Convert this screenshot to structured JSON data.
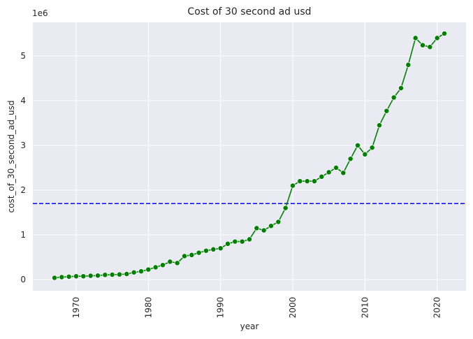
{
  "chart_data": {
    "type": "line",
    "title": "Cost of 30 second ad usd",
    "xlabel": "year",
    "ylabel": "cost_of_30_second_ad_usd",
    "y_offset_label": "1e6",
    "xlim": [
      1964,
      2024
    ],
    "ylim": [
      -0.25,
      5.75
    ],
    "y_unit_multiplier": 1000000,
    "x_ticks": [
      1970,
      1980,
      1990,
      2000,
      2010,
      2020
    ],
    "y_ticks": [
      0,
      1,
      2,
      3,
      4,
      5
    ],
    "grid": true,
    "background_color": "#eaeaf2",
    "line_color": "#008000",
    "reference_line": {
      "y": 1.7,
      "style": "dashed",
      "color": "#0000ff"
    },
    "x": [
      1967,
      1968,
      1969,
      1970,
      1971,
      1972,
      1973,
      1974,
      1975,
      1976,
      1977,
      1978,
      1979,
      1980,
      1981,
      1982,
      1983,
      1984,
      1985,
      1986,
      1987,
      1988,
      1989,
      1990,
      1991,
      1992,
      1993,
      1994,
      1995,
      1996,
      1997,
      1998,
      1999,
      2000,
      2001,
      2002,
      2003,
      2004,
      2005,
      2006,
      2007,
      2008,
      2009,
      2010,
      2011,
      2012,
      2013,
      2014,
      2015,
      2016,
      2017,
      2018,
      2019,
      2020,
      2021
    ],
    "y": [
      0.04,
      0.055,
      0.065,
      0.075,
      0.075,
      0.085,
      0.09,
      0.105,
      0.11,
      0.115,
      0.125,
      0.16,
      0.185,
      0.225,
      0.275,
      0.325,
      0.4,
      0.37,
      0.525,
      0.55,
      0.6,
      0.645,
      0.675,
      0.7,
      0.8,
      0.85,
      0.85,
      0.9,
      1.15,
      1.1,
      1.2,
      1.29,
      1.6,
      2.1,
      2.2,
      2.2,
      2.2,
      2.3,
      2.4,
      2.5,
      2.385,
      2.7,
      3.0,
      2.8,
      2.95,
      3.45,
      3.77,
      4.07,
      4.28,
      4.8,
      5.4,
      5.24,
      5.2,
      5.4,
      5.5
    ]
  }
}
